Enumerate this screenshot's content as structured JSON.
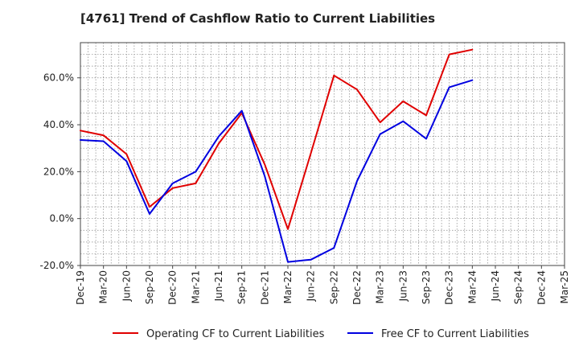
{
  "chart_data": {
    "type": "line",
    "title": "[4761]  Trend of Cashflow Ratio to Current Liabilities",
    "xlabel": "",
    "ylabel": "",
    "x": [
      "Dec-19",
      "Mar-20",
      "Jun-20",
      "Sep-20",
      "Dec-20",
      "Mar-21",
      "Jun-21",
      "Sep-21",
      "Dec-21",
      "Mar-22",
      "Jun-22",
      "Sep-22",
      "Dec-22",
      "Mar-23",
      "Jun-23",
      "Sep-23",
      "Dec-23",
      "Mar-24",
      "Jun-24",
      "Sep-24",
      "Dec-24",
      "Mar-25"
    ],
    "ylim": [
      -20,
      75
    ],
    "yticks": [
      -20,
      0,
      20,
      40,
      60
    ],
    "ytick_labels": [
      "-20.0%",
      "0.0%",
      "20.0%",
      "40.0%",
      "60.0%"
    ],
    "grid": true,
    "legend_position": "bottom",
    "series": [
      {
        "name": "Operating CF to Current Liabilities",
        "color": "#e00000",
        "values": [
          37.5,
          35.5,
          27.5,
          5.0,
          13.0,
          15.0,
          32.0,
          45.0,
          23.0,
          -4.5,
          28.0,
          61.0,
          55.0,
          41.0,
          50.0,
          44.0,
          70.0,
          72.0,
          null,
          null,
          null,
          null
        ]
      },
      {
        "name": "Free CF to Current Liabilities",
        "color": "#0000e0",
        "values": [
          33.5,
          33.0,
          24.5,
          2.0,
          15.0,
          20.0,
          35.0,
          46.0,
          18.0,
          -18.5,
          -17.5,
          -12.5,
          16.0,
          36.0,
          41.5,
          34.0,
          56.0,
          59.0,
          null,
          null,
          null,
          null
        ]
      }
    ]
  }
}
